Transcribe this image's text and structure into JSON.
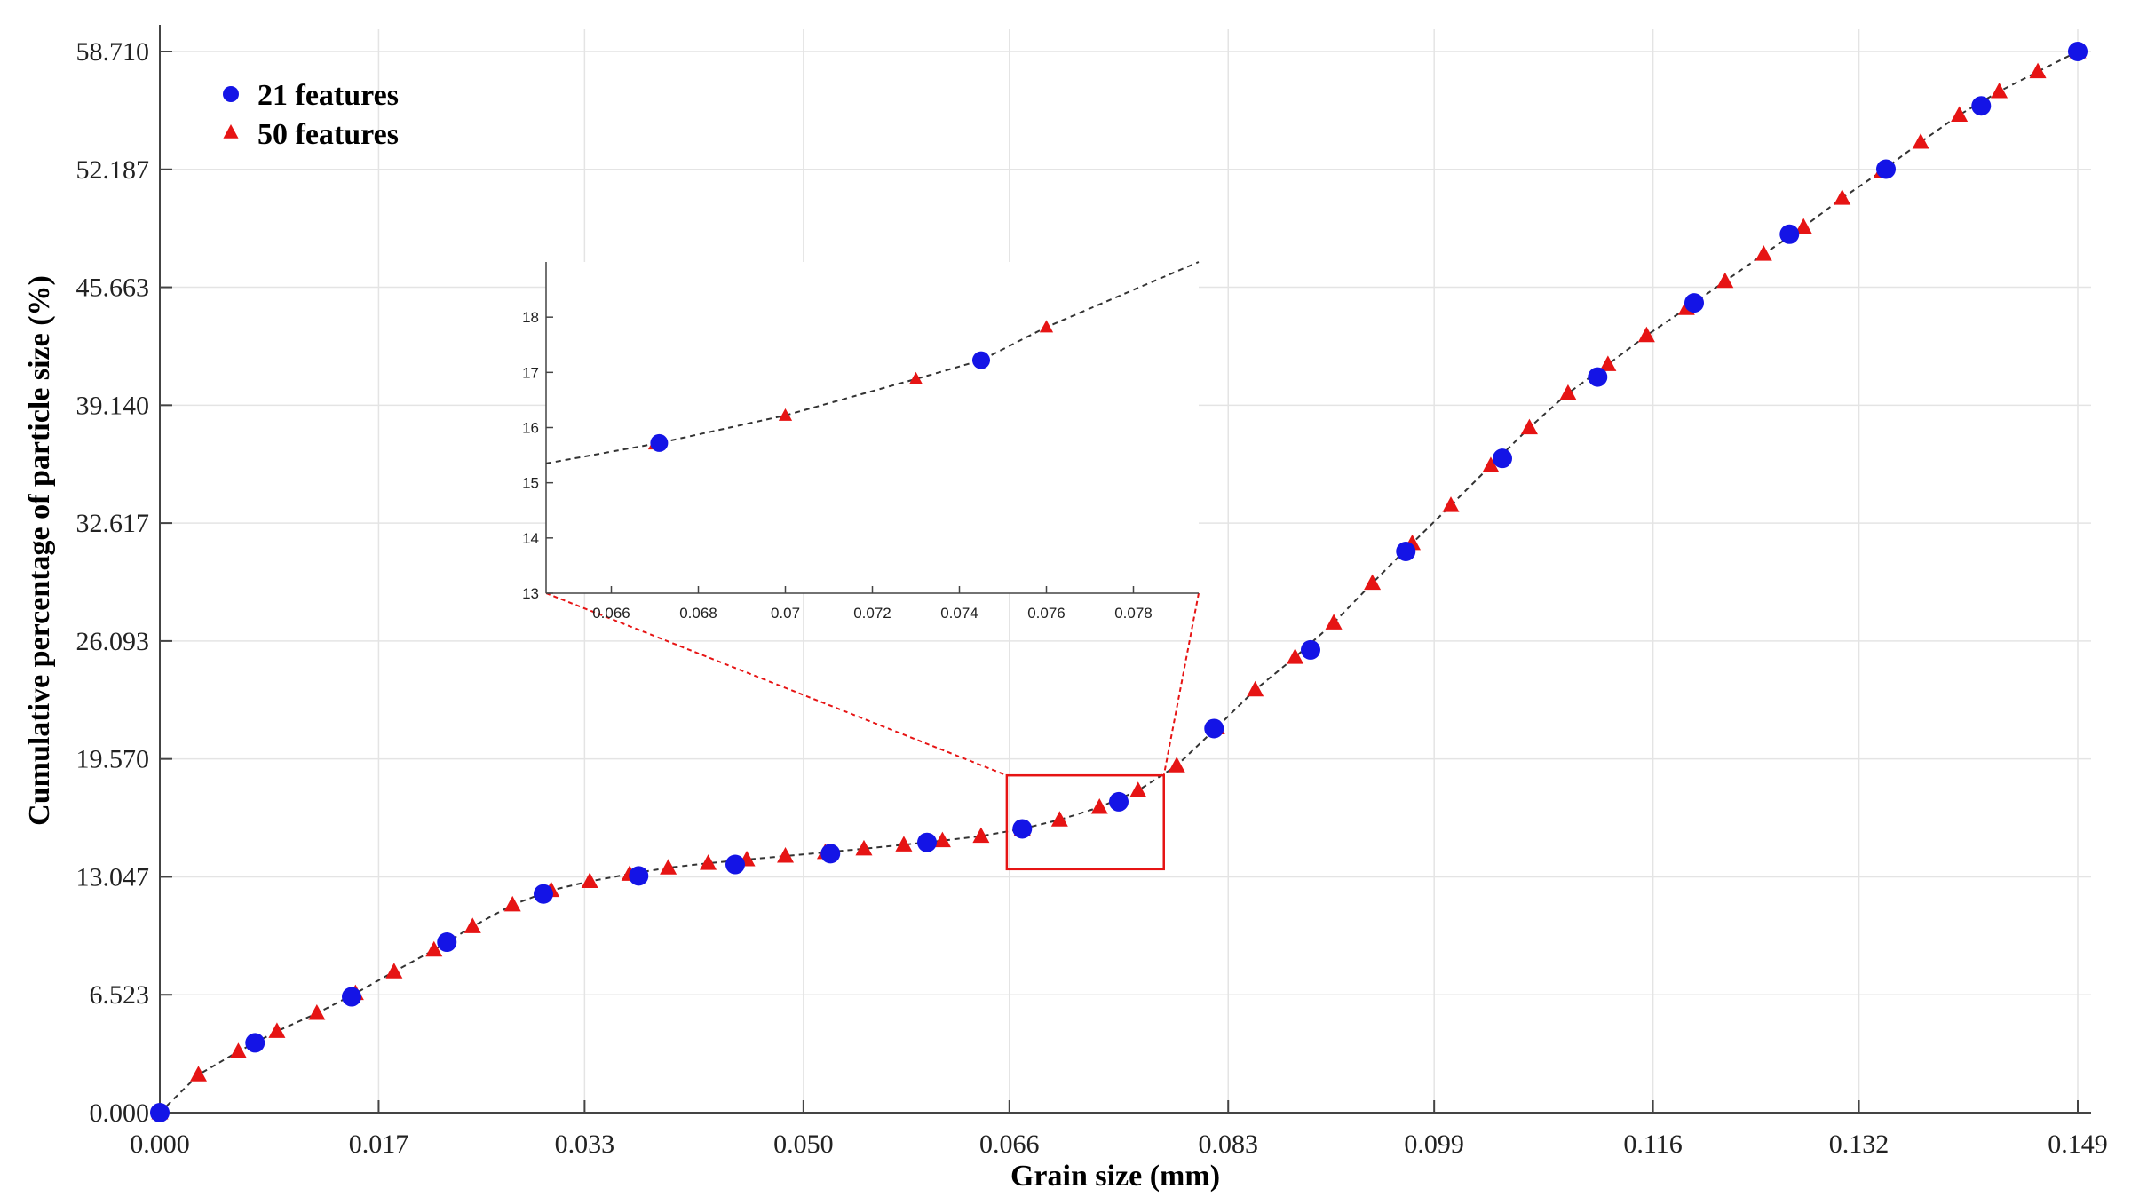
{
  "chart_data": {
    "type": "scatter",
    "xlabel": "Grain size (mm)",
    "ylabel": "Cumulative percentage of particle size (%)",
    "x_ticks": [
      "0.000",
      "0.017",
      "0.033",
      "0.050",
      "0.066",
      "0.083",
      "0.099",
      "0.116",
      "0.132",
      "0.149"
    ],
    "y_ticks": [
      "0.000",
      "6.523",
      "13.047",
      "19.570",
      "26.093",
      "32.617",
      "39.140",
      "45.663",
      "52.187",
      "58.710"
    ],
    "xlim": [
      0,
      0.149
    ],
    "ylim": [
      0,
      58.71
    ],
    "grid": true,
    "legend_position": "top-left",
    "series": [
      {
        "name": "21 features",
        "marker": "circle",
        "color": "#1414e6",
        "points": [
          [
            0.0,
            0.0
          ],
          [
            0.0074,
            3.86
          ],
          [
            0.0149,
            6.41
          ],
          [
            0.0223,
            9.43
          ],
          [
            0.0298,
            12.1
          ],
          [
            0.0372,
            13.1
          ],
          [
            0.0447,
            13.73
          ],
          [
            0.0521,
            14.33
          ],
          [
            0.0596,
            14.95
          ],
          [
            0.067,
            15.7
          ],
          [
            0.0745,
            17.2
          ],
          [
            0.0819,
            21.25
          ],
          [
            0.0894,
            25.6
          ],
          [
            0.0968,
            31.05
          ],
          [
            0.1043,
            36.2
          ],
          [
            0.1117,
            40.7
          ],
          [
            0.1192,
            44.8
          ],
          [
            0.1266,
            48.6
          ],
          [
            0.1341,
            52.2
          ],
          [
            0.1415,
            55.7
          ],
          [
            0.149,
            58.71
          ]
        ]
      },
      {
        "name": "50 features",
        "marker": "triangle",
        "color": "#e61414",
        "points": [
          [
            0.0,
            0.0
          ],
          [
            0.003,
            2.1
          ],
          [
            0.0061,
            3.38
          ],
          [
            0.0091,
            4.5
          ],
          [
            0.0122,
            5.5
          ],
          [
            0.0152,
            6.6
          ],
          [
            0.0182,
            7.8
          ],
          [
            0.0213,
            9.0
          ],
          [
            0.0243,
            10.3
          ],
          [
            0.0274,
            11.5
          ],
          [
            0.0304,
            12.3
          ],
          [
            0.0334,
            12.8
          ],
          [
            0.0365,
            13.2
          ],
          [
            0.0395,
            13.55
          ],
          [
            0.0426,
            13.8
          ],
          [
            0.0456,
            14.0
          ],
          [
            0.0486,
            14.2
          ],
          [
            0.0517,
            14.4
          ],
          [
            0.0547,
            14.6
          ],
          [
            0.0578,
            14.82
          ],
          [
            0.0608,
            15.05
          ],
          [
            0.0638,
            15.3
          ],
          [
            0.067,
            15.7
          ],
          [
            0.0699,
            16.2
          ],
          [
            0.073,
            16.9
          ],
          [
            0.076,
            17.82
          ],
          [
            0.079,
            19.2
          ],
          [
            0.0821,
            21.3
          ],
          [
            0.0851,
            23.4
          ],
          [
            0.0882,
            25.2
          ],
          [
            0.0912,
            27.1
          ],
          [
            0.0942,
            29.3
          ],
          [
            0.0973,
            31.5
          ],
          [
            0.1003,
            33.6
          ],
          [
            0.1034,
            35.8
          ],
          [
            0.1064,
            37.9
          ],
          [
            0.1094,
            39.8
          ],
          [
            0.1125,
            41.4
          ],
          [
            0.1155,
            43.0
          ],
          [
            0.1186,
            44.5
          ],
          [
            0.1216,
            46.0
          ],
          [
            0.1246,
            47.5
          ],
          [
            0.1277,
            49.0
          ],
          [
            0.1307,
            50.6
          ],
          [
            0.1338,
            52.1
          ],
          [
            0.1368,
            53.7
          ],
          [
            0.1398,
            55.2
          ],
          [
            0.1429,
            56.5
          ],
          [
            0.1459,
            57.6
          ],
          [
            0.149,
            58.71
          ]
        ]
      }
    ],
    "inset": {
      "x_ticks": [
        "0.066",
        "0.068",
        "0.07",
        "0.072",
        "0.074",
        "0.076",
        "0.078"
      ],
      "y_ticks": [
        "13",
        "14",
        "15",
        "16",
        "17",
        "18"
      ],
      "xlim": [
        0.0645,
        0.0795
      ],
      "ylim": [
        13,
        19
      ],
      "zoom_box": {
        "xlim": [
          0.0658,
          0.078
        ],
        "ylim": [
          13.47,
          18.66
        ]
      },
      "circles": [
        [
          0.0671,
          15.72
        ],
        [
          0.0745,
          17.22
        ]
      ],
      "triangles": [
        [
          0.067,
          15.7
        ],
        [
          0.07,
          16.22
        ],
        [
          0.073,
          16.88
        ],
        [
          0.076,
          17.82
        ]
      ],
      "line": [
        [
          0.0645,
          15.35
        ],
        [
          0.0671,
          15.72
        ],
        [
          0.07,
          16.22
        ],
        [
          0.073,
          16.88
        ],
        [
          0.0745,
          17.22
        ],
        [
          0.076,
          17.82
        ],
        [
          0.0795,
          19.0
        ]
      ]
    }
  }
}
